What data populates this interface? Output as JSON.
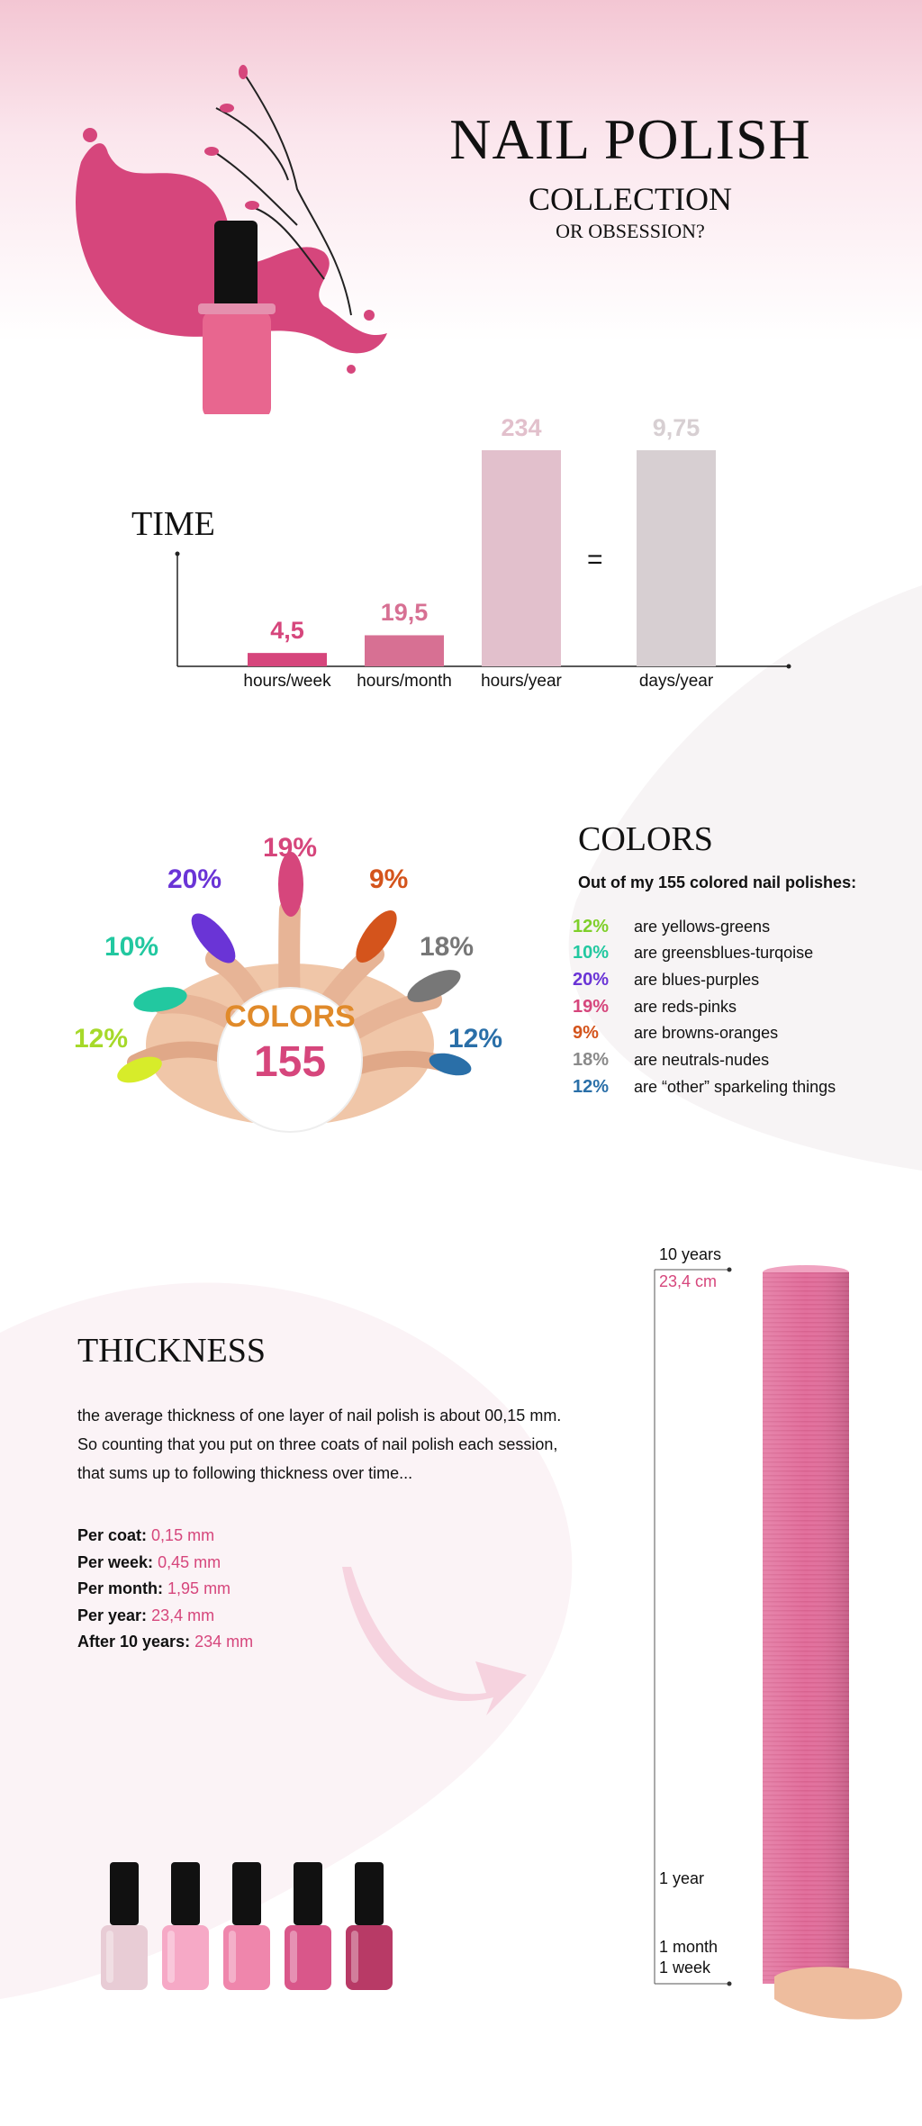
{
  "header": {
    "title": "NAIL POLISH",
    "subtitle": "COLLECTION",
    "subtitle2": "OR OBSESSION?"
  },
  "time": {
    "title": "TIME",
    "equals": "="
  },
  "chart_data": {
    "type": "bar",
    "categories": [
      "hours/week",
      "hours/month",
      "hours/year",
      "days/year"
    ],
    "values": [
      4.5,
      19.5,
      234,
      9.75
    ],
    "value_labels": [
      "4,5",
      "19,5",
      "234",
      "9,75"
    ],
    "colors": [
      "#d6467c",
      "#d77093",
      "#e2c0cc",
      "#d7cfd2"
    ],
    "title": "TIME"
  },
  "colors_section": {
    "title": "COLORS",
    "intro": "Out of my 155 colored nail polishes:",
    "badge_word": "COLORS",
    "badge_num": "155",
    "items": [
      {
        "pct": "12%",
        "label": "are yellows-greens",
        "color": "#7fcf2a"
      },
      {
        "pct": "10%",
        "label": "are greensblues-turqoise",
        "color": "#22c8a0"
      },
      {
        "pct": "20%",
        "label": "are blues-purples",
        "color": "#6a34d6"
      },
      {
        "pct": "19%",
        "label": "are reds-pinks",
        "color": "#d6467c"
      },
      {
        "pct": "9%",
        "label": "are browns-oranges",
        "color": "#d4541c"
      },
      {
        "pct": "18%",
        "label": "are neutrals-nudes",
        "color": "#8a8a8a"
      },
      {
        "pct": "12%",
        "label": "are “other” sparkeling things",
        "color": "#2a6fa8"
      }
    ]
  },
  "thickness": {
    "title": "THICKNESS",
    "lines": [
      "the average thickness of one layer of nail polish is about 00,15 mm.",
      "So counting that you put on three coats of nail polish each session,",
      "that sums up to following thickness over time..."
    ],
    "measures": [
      {
        "label": "Per coat:",
        "value": "0,15 mm"
      },
      {
        "label": "Per week:",
        "value": "0,45 mm"
      },
      {
        "label": "Per month:",
        "value": "1,95 mm"
      },
      {
        "label": "Per year:",
        "value": "23,4 mm"
      },
      {
        "label": "After 10 years:",
        "value": "234 mm"
      }
    ],
    "ruler": {
      "top": "10 years",
      "top_value": "23,4 cm",
      "year": "1 year",
      "month": "1 month",
      "week": "1 week"
    }
  },
  "bottles": [
    "#e8ccd5",
    "#f6a9c6",
    "#ef86ac",
    "#d9578a",
    "#b83a66"
  ],
  "accent": "#d6467c"
}
